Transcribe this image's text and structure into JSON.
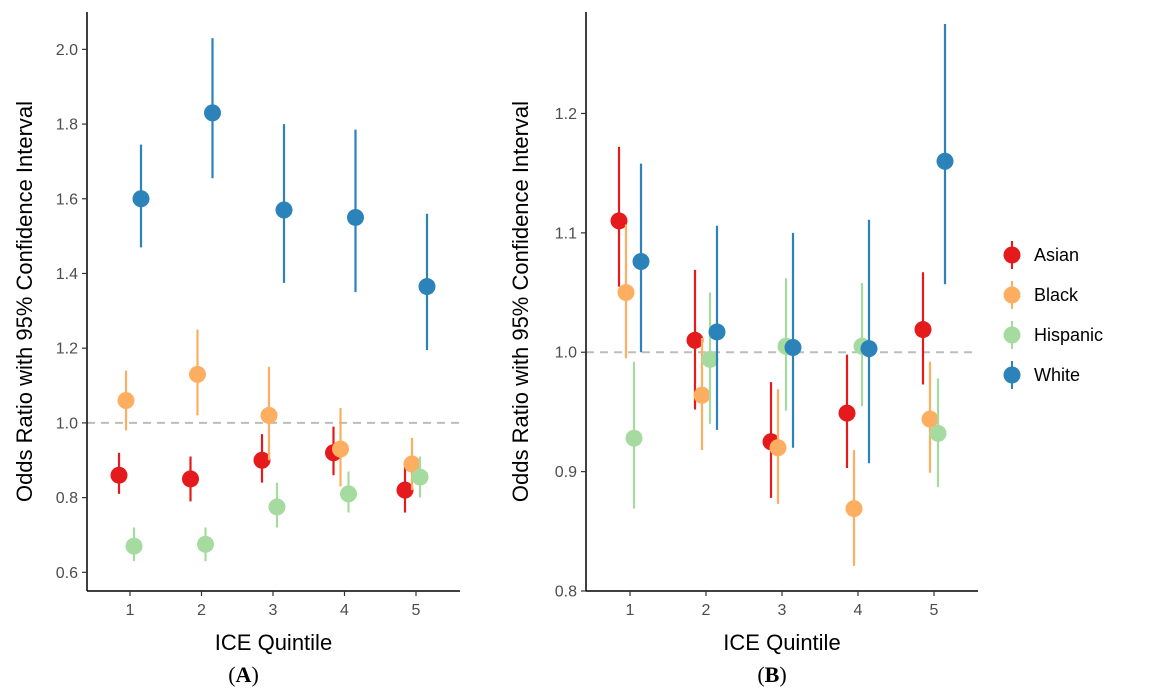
{
  "chart_data": [
    {
      "type": "scatter",
      "panel_label": "(A)",
      "xlabel": "ICE Quintile",
      "ylabel": "Odds Ratio with 95% Confidence Interval",
      "x_categories": [
        "1",
        "2",
        "3",
        "4",
        "5"
      ],
      "ylim": [
        0.55,
        2.1
      ],
      "yticks": [
        "0.6",
        "0.8",
        "1.0",
        "1.2",
        "1.4",
        "1.6",
        "1.8",
        "2.0"
      ],
      "reference_line": 1.0,
      "series": [
        {
          "name": "Asian",
          "color": "#e41a1c",
          "values": [
            0.86,
            0.85,
            0.9,
            0.92,
            0.82
          ],
          "lower": [
            0.81,
            0.79,
            0.84,
            0.86,
            0.76
          ],
          "upper": [
            0.92,
            0.91,
            0.97,
            0.99,
            0.89
          ]
        },
        {
          "name": "Black",
          "color": "#fdae61",
          "values": [
            1.06,
            1.13,
            1.02,
            0.93,
            0.89
          ],
          "lower": [
            0.98,
            1.02,
            0.9,
            0.83,
            0.82
          ],
          "upper": [
            1.14,
            1.25,
            1.15,
            1.04,
            0.96
          ]
        },
        {
          "name": "Hispanic",
          "color": "#a6dba0",
          "values": [
            0.67,
            0.675,
            0.775,
            0.81,
            0.855
          ],
          "lower": [
            0.63,
            0.63,
            0.72,
            0.76,
            0.8
          ],
          "upper": [
            0.72,
            0.72,
            0.84,
            0.87,
            0.91
          ]
        },
        {
          "name": "White",
          "color": "#2b83ba",
          "values": [
            1.6,
            1.83,
            1.57,
            1.55,
            1.365
          ],
          "lower": [
            1.47,
            1.655,
            1.375,
            1.35,
            1.195
          ],
          "upper": [
            1.745,
            2.03,
            1.8,
            1.785,
            1.56
          ]
        }
      ]
    },
    {
      "type": "scatter",
      "panel_label": "(B)",
      "xlabel": "ICE Quintile",
      "ylabel": "Odds Ratio with 95% Confidence Interval",
      "x_categories": [
        "1",
        "2",
        "3",
        "4",
        "5"
      ],
      "ylim": [
        0.8,
        1.285
      ],
      "yticks": [
        "0.8",
        "0.9",
        "1.0",
        "1.1",
        "1.2"
      ],
      "reference_line": 1.0,
      "series": [
        {
          "name": "Asian",
          "color": "#e41a1c",
          "values": [
            1.11,
            1.01,
            0.925,
            0.949,
            1.019
          ],
          "lower": [
            1.055,
            0.952,
            0.878,
            0.903,
            0.973
          ],
          "upper": [
            1.172,
            1.069,
            0.975,
            0.998,
            1.067
          ]
        },
        {
          "name": "Black",
          "color": "#fdae61",
          "values": [
            1.05,
            0.964,
            0.92,
            0.869,
            0.944
          ],
          "lower": [
            0.995,
            0.918,
            0.873,
            0.821,
            0.899
          ],
          "upper": [
            1.107,
            1.012,
            0.969,
            0.918,
            0.992
          ]
        },
        {
          "name": "Hispanic",
          "color": "#a6dba0",
          "values": [
            0.928,
            0.994,
            1.005,
            1.005,
            0.932
          ],
          "lower": [
            0.869,
            0.94,
            0.951,
            0.955,
            0.887
          ],
          "upper": [
            0.992,
            1.05,
            1.062,
            1.058,
            0.978
          ]
        },
        {
          "name": "White",
          "color": "#2b83ba",
          "values": [
            1.076,
            1.017,
            1.004,
            1.003,
            1.16
          ],
          "lower": [
            1.0,
            0.935,
            0.92,
            0.907,
            1.057
          ],
          "upper": [
            1.158,
            1.106,
            1.1,
            1.111,
            1.275
          ]
        }
      ]
    }
  ],
  "legend": {
    "placement": "right",
    "items": [
      "Asian",
      "Black",
      "Hispanic",
      "White"
    ]
  }
}
